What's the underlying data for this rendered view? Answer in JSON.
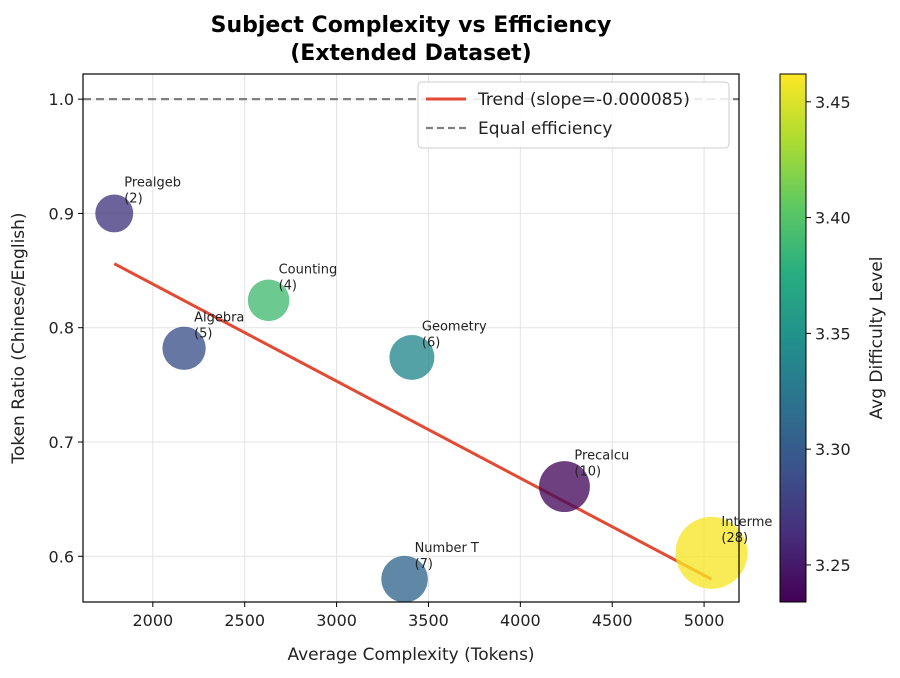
{
  "chart_data": {
    "type": "scatter",
    "title_lines": [
      "Subject Complexity vs Efficiency",
      "(Extended Dataset)"
    ],
    "xlabel": "Average Complexity (Tokens)",
    "ylabel": "Token Ratio (Chinese/English)",
    "xlim": [
      1620,
      5190
    ],
    "ylim": [
      0.56,
      1.022
    ],
    "xticks": [
      2000,
      2500,
      3000,
      3500,
      4000,
      4500,
      5000
    ],
    "yticks": [
      0.6,
      0.7,
      0.8,
      0.9,
      1.0
    ],
    "grid": true,
    "points": [
      {
        "label": "Prealgeb",
        "count": "(2)",
        "x": 1790,
        "y": 0.9,
        "difficulty": 3.27
      },
      {
        "label": "Algebra",
        "count": "(5)",
        "x": 2170,
        "y": 0.782,
        "difficulty": 3.29
      },
      {
        "label": "Counting",
        "count": "(4)",
        "x": 2630,
        "y": 0.824,
        "difficulty": 3.39
      },
      {
        "label": "Geometry",
        "count": "(6)",
        "x": 3410,
        "y": 0.774,
        "difficulty": 3.34
      },
      {
        "label": "Number T",
        "count": "(7)",
        "x": 3370,
        "y": 0.58,
        "difficulty": 3.31
      },
      {
        "label": "Precalcu",
        "count": "(10)",
        "x": 4240,
        "y": 0.661,
        "difficulty": 3.24
      },
      {
        "label": "Interme",
        "count": "(28)",
        "x": 5040,
        "y": 0.603,
        "difficulty": 3.46
      }
    ],
    "trend": {
      "label": "Trend (slope=-0.000085)",
      "x": [
        1790,
        5040
      ],
      "y": [
        0.856,
        0.58
      ],
      "color": "#e24a33"
    },
    "reference_line": {
      "label": "Equal efficiency",
      "y": 1.0,
      "color": "#808080"
    },
    "legend_position": "top-right",
    "colorbar": {
      "label": "Avg Difficulty Level",
      "colormap": "viridis",
      "range": [
        3.234,
        3.462
      ],
      "ticks": [
        3.25,
        3.3,
        3.35,
        3.4,
        3.45
      ],
      "tick_labels": [
        "3.25",
        "3.30",
        "3.35",
        "3.40",
        "3.45"
      ]
    }
  }
}
